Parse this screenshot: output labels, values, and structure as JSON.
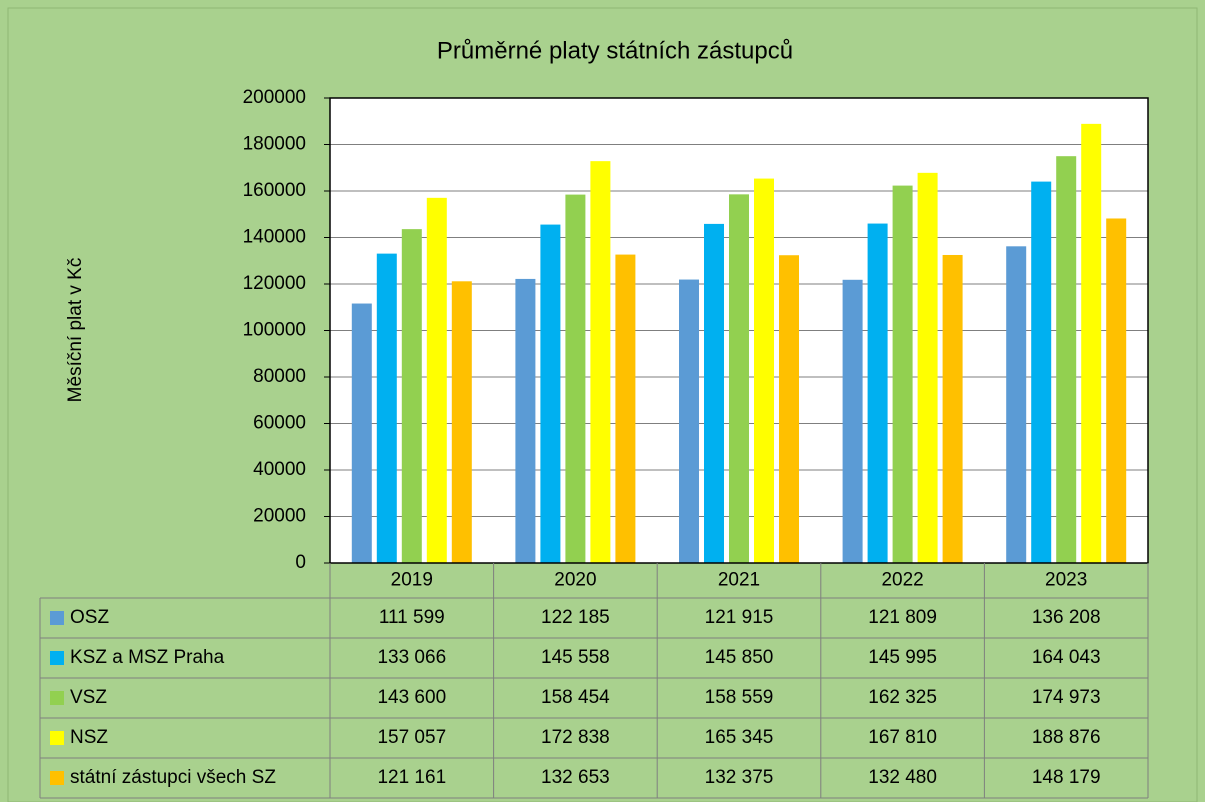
{
  "chart_data": {
    "type": "bar",
    "title": "Průměrné platy státních zástupců",
    "y_label": "Měsíční plat v Kč",
    "categories": [
      "2019",
      "2020",
      "2021",
      "2022",
      "2023"
    ],
    "series": [
      {
        "name": "OSZ",
        "color": "#5b9bd5",
        "values": [
          111599,
          122185,
          121915,
          121809,
          136208
        ],
        "value_labels": [
          "111 599",
          "122 185",
          "121 915",
          "121 809",
          "136 208"
        ]
      },
      {
        "name": "KSZ a MSZ Praha",
        "color": "#00b0f0",
        "values": [
          133066,
          145558,
          145850,
          145995,
          164043
        ],
        "value_labels": [
          "133 066",
          "145 558",
          "145 850",
          "145 995",
          "164 043"
        ]
      },
      {
        "name": "VSZ",
        "color": "#92d050",
        "values": [
          143600,
          158454,
          158559,
          162325,
          174973
        ],
        "value_labels": [
          "143 600",
          "158 454",
          "158 559",
          "162 325",
          "174 973"
        ]
      },
      {
        "name": "NSZ",
        "color": "#ffff00",
        "values": [
          157057,
          172838,
          165345,
          167810,
          188876
        ],
        "value_labels": [
          "157 057",
          "172 838",
          "165 345",
          "167 810",
          "188 876"
        ]
      },
      {
        "name": "státní zástupci všech SZ",
        "color": "#ffc000",
        "values": [
          121161,
          132653,
          132375,
          132480,
          148179
        ],
        "value_labels": [
          "121 161",
          "132 653",
          "132 375",
          "132 480",
          "148 179"
        ]
      }
    ],
    "ylim": [
      0,
      200000
    ],
    "yticks": [
      0,
      20000,
      40000,
      60000,
      80000,
      100000,
      120000,
      140000,
      160000,
      180000,
      200000
    ],
    "grid": true
  }
}
